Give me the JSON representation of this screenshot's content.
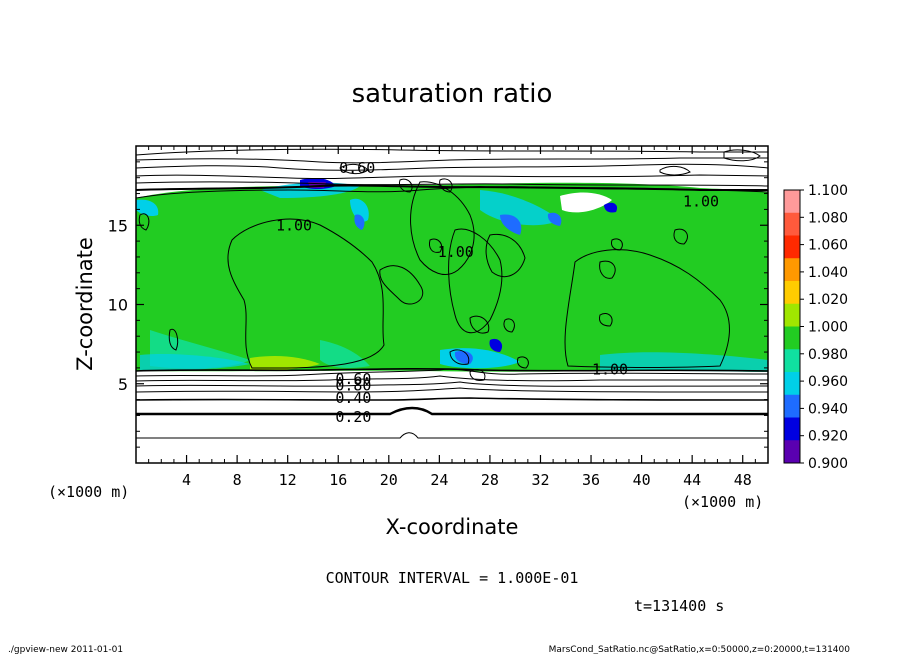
{
  "chart_data": {
    "type": "heatmap",
    "title": "saturation ratio",
    "xlabel": "X-coordinate",
    "ylabel": "Z-coordinate",
    "x_unit": "(×1000 m)",
    "y_unit": "(×1000 m)",
    "xlim": [
      0,
      50
    ],
    "ylim": [
      0,
      20
    ],
    "x_ticks": [
      "4",
      "8",
      "12",
      "16",
      "20",
      "24",
      "28",
      "32",
      "36",
      "40",
      "44",
      "48"
    ],
    "y_ticks": [
      "5",
      "10",
      "15"
    ],
    "x_tick_values": [
      4,
      8,
      12,
      16,
      20,
      24,
      28,
      32,
      36,
      40,
      44,
      48
    ],
    "y_tick_values": [
      5,
      10,
      15
    ],
    "colorbar": {
      "labels": [
        "1.100",
        "1.080",
        "1.060",
        "1.040",
        "1.020",
        "1.000",
        "0.980",
        "0.960",
        "0.940",
        "0.920",
        "0.900"
      ],
      "colors": [
        "#ff9a9a",
        "#ff5a3c",
        "#ff2a00",
        "#ff9900",
        "#ffcc00",
        "#a0e600",
        "#22cc22",
        "#10e0a0",
        "#00d0e8",
        "#1e6cff",
        "#0000e0",
        "#5a00b0"
      ]
    },
    "contour_labels": [
      {
        "text": "0.60",
        "x": 17.5,
        "z": 18.6
      },
      {
        "text": "1.00",
        "x": 12.5,
        "z": 15.0
      },
      {
        "text": "1.00",
        "x": 25.3,
        "z": 13.3
      },
      {
        "text": "1.00",
        "x": 44.7,
        "z": 16.5
      },
      {
        "text": "1.00",
        "x": 37.5,
        "z": 5.9
      },
      {
        "text": "0.60",
        "x": 17.2,
        "z": 5.3
      },
      {
        "text": "0.80",
        "x": 17.2,
        "z": 4.9
      },
      {
        "text": "0.40",
        "x": 17.2,
        "z": 4.1
      },
      {
        "text": "0.20",
        "x": 17.2,
        "z": 2.9
      }
    ],
    "grid": false,
    "legend": "right colorbar"
  },
  "annotations": {
    "contour_interval": "CONTOUR INTERVAL = 1.000E-01",
    "time": "t=131400 s",
    "footer_left": "./gpview-new   2011-01-01",
    "footer_right": "MarsCond_SatRatio.nc@SatRatio,x=0:50000,z=0:20000,t=131400"
  }
}
